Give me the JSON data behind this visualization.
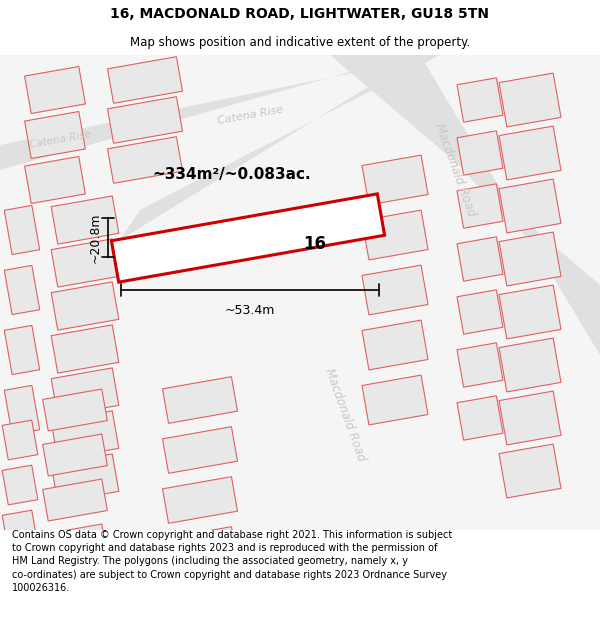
{
  "title": "16, MACDONALD ROAD, LIGHTWATER, GU18 5TN",
  "subtitle": "Map shows position and indicative extent of the property.",
  "footer": "Contains OS data © Crown copyright and database right 2021. This information is subject\nto Crown copyright and database rights 2023 and is reproduced with the permission of\nHM Land Registry. The polygons (including the associated geometry, namely x, y\nco-ordinates) are subject to Crown copyright and database rights 2023 Ordnance Survey\n100026316.",
  "area_label": "~334m²/~0.083ac.",
  "width_label": "~53.4m",
  "height_label": "~20.8m",
  "number_label": "16",
  "bg_color": "#ffffff",
  "map_bg": "#ffffff",
  "bldg_fill": "#e8e8e8",
  "bldg_edge": "#e06060",
  "road_fill": "#f0f0f0",
  "highlight_edge": "#cc0000",
  "highlight_fill": "#ffffff",
  "dim_color": "#000000",
  "label_color": "#c8c8c8",
  "title_size": 10,
  "subtitle_size": 8.5,
  "footer_size": 7
}
